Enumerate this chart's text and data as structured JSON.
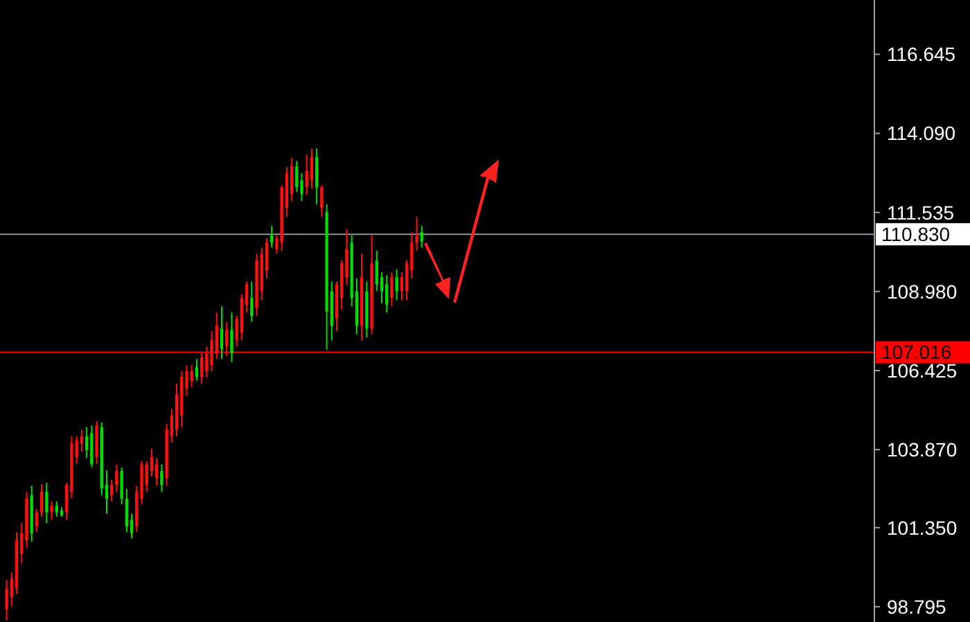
{
  "chart_data": {
    "type": "candlestick",
    "categories": [
      null,
      null,
      null,
      null,
      null,
      null,
      null,
      null,
      null,
      null,
      null,
      null,
      null,
      null,
      null,
      null,
      null,
      null,
      null,
      null,
      null,
      null,
      null,
      null,
      null,
      null,
      null,
      null,
      null,
      null,
      null,
      null,
      null,
      null,
      null,
      null,
      null,
      null,
      null,
      null,
      null,
      null,
      null,
      null,
      null,
      null,
      null,
      null,
      null,
      null,
      null,
      null,
      null,
      null,
      null,
      null,
      null,
      null,
      null,
      null,
      null,
      null,
      null,
      null,
      null,
      null,
      null,
      null,
      null,
      null,
      null,
      null,
      null,
      null,
      null,
      null,
      null,
      null,
      null,
      null,
      null,
      null,
      null,
      null,
      null,
      null,
      null,
      null,
      null,
      null,
      null,
      null,
      null,
      null,
      null,
      null,
      null,
      null,
      null,
      null,
      null,
      null,
      null,
      null,
      null,
      null,
      null,
      null,
      null,
      null,
      null,
      null,
      null,
      null,
      null,
      null,
      null,
      null,
      null,
      null,
      null,
      null,
      null,
      null,
      null,
      null,
      null,
      null,
      null,
      null,
      null,
      null,
      null,
      null,
      null,
      null,
      null,
      null,
      null,
      null,
      null,
      null,
      null,
      null,
      null,
      null,
      null,
      null,
      null,
      null,
      null,
      null,
      null,
      null,
      null,
      null,
      null,
      null,
      null,
      null,
      null,
      null,
      null,
      null,
      null,
      null,
      null,
      null,
      null,
      null,
      null,
      null,
      null,
      null
    ],
    "ohlc": [
      [
        98.7,
        99.65,
        98.35,
        99.37
      ],
      [
        99.1,
        99.9,
        98.8,
        99.7
      ],
      [
        99.4,
        101.2,
        99.2,
        100.94
      ],
      [
        100.5,
        101.5,
        100.2,
        101.17
      ],
      [
        100.94,
        102.5,
        100.7,
        102.28
      ],
      [
        102.4,
        102.7,
        100.9,
        101.17
      ],
      [
        101.39,
        101.95,
        101.2,
        101.84
      ],
      [
        101.84,
        102.75,
        101.7,
        102.51
      ],
      [
        102.51,
        102.8,
        101.5,
        101.84
      ],
      [
        101.84,
        102.2,
        101.6,
        102.06
      ],
      [
        102.06,
        102.2,
        101.7,
        101.84
      ],
      [
        101.9,
        102.0,
        101.7,
        101.75
      ],
      [
        101.84,
        102.8,
        101.6,
        102.73
      ],
      [
        102.5,
        104.3,
        102.3,
        104.07
      ],
      [
        103.63,
        104.3,
        103.4,
        104.16
      ],
      [
        104.07,
        104.5,
        103.8,
        104.3
      ],
      [
        104.3,
        104.6,
        103.6,
        103.85
      ],
      [
        104.4,
        104.65,
        103.3,
        103.4
      ],
      [
        103.63,
        104.8,
        103.4,
        104.65
      ],
      [
        104.6,
        104.75,
        102.4,
        102.62
      ],
      [
        102.73,
        103.2,
        101.8,
        102.28
      ],
      [
        102.4,
        102.9,
        102.2,
        102.73
      ],
      [
        102.73,
        103.4,
        102.5,
        103.18
      ],
      [
        103.18,
        103.3,
        102.1,
        102.28
      ],
      [
        102.28,
        102.6,
        101.2,
        101.39
      ],
      [
        101.6,
        101.8,
        101.0,
        101.17
      ],
      [
        101.39,
        102.7,
        101.2,
        102.51
      ],
      [
        102.28,
        103.5,
        102.1,
        103.4
      ],
      [
        102.73,
        103.5,
        102.5,
        103.4
      ],
      [
        103.18,
        103.9,
        103.0,
        103.63
      ],
      [
        102.95,
        103.6,
        102.7,
        103.4
      ],
      [
        103.18,
        103.4,
        102.5,
        102.73
      ],
      [
        102.95,
        104.7,
        102.7,
        104.52
      ],
      [
        104.3,
        105.2,
        104.1,
        104.97
      ],
      [
        104.52,
        106.0,
        104.3,
        105.64
      ],
      [
        104.97,
        106.4,
        104.6,
        106.22
      ],
      [
        105.86,
        106.6,
        105.6,
        106.4
      ],
      [
        106.1,
        106.6,
        105.9,
        106.4
      ],
      [
        106.53,
        106.8,
        106.1,
        106.22
      ],
      [
        106.22,
        107.0,
        106.0,
        106.85
      ],
      [
        106.4,
        107.2,
        106.2,
        106.98
      ],
      [
        106.6,
        107.7,
        106.4,
        107.42
      ],
      [
        106.98,
        108.3,
        106.8,
        107.87
      ],
      [
        107.78,
        108.5,
        106.8,
        107.12
      ],
      [
        107.2,
        108.0,
        106.9,
        107.74
      ],
      [
        107.74,
        108.3,
        106.7,
        106.98
      ],
      [
        107.42,
        108.2,
        107.2,
        108.1
      ],
      [
        107.65,
        108.9,
        107.4,
        108.77
      ],
      [
        108.55,
        109.3,
        108.3,
        109.21
      ],
      [
        108.77,
        109.3,
        108.0,
        108.19
      ],
      [
        108.45,
        110.2,
        108.2,
        109.98
      ],
      [
        108.99,
        110.4,
        108.7,
        110.2
      ],
      [
        109.66,
        110.7,
        109.4,
        110.56
      ],
      [
        110.8,
        111.1,
        110.4,
        110.56
      ],
      [
        110.34,
        110.8,
        110.2,
        110.69
      ],
      [
        110.56,
        112.4,
        110.3,
        112.35
      ],
      [
        111.68,
        113.0,
        111.4,
        112.8
      ],
      [
        112.13,
        113.3,
        111.9,
        113.02
      ],
      [
        113.02,
        113.2,
        112.2,
        112.35
      ],
      [
        112.57,
        112.8,
        111.9,
        112.13
      ],
      [
        112.35,
        113.4,
        112.1,
        112.88
      ],
      [
        112.57,
        113.6,
        112.3,
        113.33
      ],
      [
        113.33,
        113.6,
        111.8,
        112.35
      ],
      [
        111.68,
        112.4,
        111.4,
        112.35
      ],
      [
        111.55,
        111.8,
        107.1,
        108.33
      ],
      [
        108.99,
        109.3,
        107.4,
        107.87
      ],
      [
        108.1,
        109.3,
        107.7,
        109.21
      ],
      [
        108.77,
        110.0,
        108.4,
        109.89
      ],
      [
        109.44,
        111.0,
        109.2,
        110.34
      ],
      [
        110.56,
        110.8,
        108.5,
        108.77
      ],
      [
        108.99,
        109.4,
        107.6,
        107.87
      ],
      [
        107.87,
        110.2,
        107.4,
        109.44
      ],
      [
        108.99,
        109.3,
        107.5,
        107.78
      ],
      [
        107.78,
        110.8,
        107.6,
        109.89
      ],
      [
        109.98,
        110.3,
        109.0,
        109.21
      ],
      [
        109.44,
        109.6,
        108.6,
        108.99
      ],
      [
        109.21,
        109.5,
        108.3,
        108.55
      ],
      [
        108.77,
        109.6,
        108.5,
        109.44
      ],
      [
        109.44,
        109.7,
        108.7,
        108.99
      ],
      [
        108.99,
        109.6,
        108.7,
        109.44
      ],
      [
        108.99,
        110.0,
        108.7,
        109.89
      ],
      [
        109.66,
        110.9,
        109.4,
        110.56
      ],
      [
        110.56,
        111.4,
        110.3,
        110.78
      ],
      [
        110.9,
        111.1,
        110.4,
        110.6
      ],
      null,
      null,
      null,
      null,
      null,
      null,
      null,
      null,
      null,
      null,
      null,
      null,
      null,
      null,
      null,
      null,
      null,
      null,
      null,
      null,
      null,
      null,
      null,
      null,
      null,
      null,
      null,
      null,
      null,
      null,
      null,
      null,
      null,
      null,
      null,
      null,
      null,
      null,
      null,
      null,
      null,
      null,
      null,
      null,
      null,
      null,
      null,
      null,
      null,
      null,
      null,
      null,
      null,
      null,
      null,
      null,
      null,
      null,
      null,
      null,
      null,
      null,
      null,
      null,
      null,
      null,
      null,
      null,
      null,
      null,
      null,
      null,
      null,
      null,
      null,
      null,
      null,
      null,
      null,
      null,
      null,
      null,
      null,
      null,
      null,
      null,
      null,
      null,
      null,
      null
    ],
    "colors": [
      "#ff1010",
      "#ff1010",
      "#ff1010",
      "#ff1010",
      "#ff1010",
      "#00dd00",
      "#ff1010",
      "#ff1010",
      "#00dd00",
      "#ff1010",
      "#00dd00",
      "#00dd00",
      "#ff1010",
      "#ff1010",
      "#ff1010",
      "#ff1010",
      "#00dd00",
      "#00dd00",
      "#ff1010",
      "#00dd00",
      "#00dd00",
      "#ff1010",
      "#ff1010",
      "#00dd00",
      "#00dd00",
      "#00dd00",
      "#ff1010",
      "#ff1010",
      "#ff1010",
      "#ff1010",
      "#ff1010",
      "#00dd00",
      "#ff1010",
      "#ff1010",
      "#ff1010",
      "#ff1010",
      "#ff1010",
      "#ff1010",
      "#00dd00",
      "#ff1010",
      "#ff1010",
      "#ff1010",
      "#ff1010",
      "#00dd00",
      "#ff1010",
      "#00dd00",
      "#ff1010",
      "#ff1010",
      "#ff1010",
      "#00dd00",
      "#ff1010",
      "#ff1010",
      "#ff1010",
      "#00dd00",
      "#ff1010",
      "#ff1010",
      "#ff1010",
      "#ff1010",
      "#00dd00",
      "#00dd00",
      "#ff1010",
      "#ff1010",
      "#00dd00",
      "#ff1010",
      "#00dd00",
      "#00dd00",
      "#ff1010",
      "#ff1010",
      "#ff1010",
      "#00dd00",
      "#00dd00",
      "#ff1010",
      "#00dd00",
      "#ff1010",
      "#00dd00",
      "#00dd00",
      "#00dd00",
      "#ff1010",
      "#00dd00",
      "#ff1010",
      "#ff1010",
      "#ff1010",
      "#ff1010",
      "#00dd00",
      null,
      null,
      null,
      null,
      null,
      null,
      null,
      null,
      null,
      null,
      null,
      null,
      null,
      null,
      null,
      null,
      null,
      null,
      null,
      null,
      null,
      null,
      null,
      null,
      null,
      null,
      null,
      null,
      null,
      null,
      null,
      null,
      null,
      null,
      null,
      null,
      null,
      null,
      null,
      null,
      null,
      null,
      null,
      null,
      null,
      null,
      null,
      null,
      null,
      null,
      null,
      null,
      null,
      null,
      null,
      null,
      null,
      null,
      null,
      null,
      null,
      null,
      null,
      null,
      null,
      null,
      null,
      null,
      null,
      null,
      null,
      null,
      null,
      null,
      null,
      null,
      null,
      null,
      null,
      null,
      null,
      null,
      null,
      null,
      null,
      null,
      null,
      null,
      null,
      null
    ],
    "ylim": [
      98.3,
      118.4
    ],
    "yticks": [
      98.795,
      {
        "value": 101.35,
        "label": "101.350"
      },
      {
        "value": 103.87,
        "label": "103.870"
      },
      106.425,
      {
        "value": 108.98,
        "label": "108.980"
      },
      111.535,
      {
        "value": 114.09,
        "label": "114.090"
      },
      116.645
    ],
    "ref_lines": [
      {
        "axis": "y",
        "value": 110.83,
        "label": "110.830",
        "color": "#8a969e"
      },
      {
        "axis": "y",
        "value": 107.016,
        "label": "107.016",
        "color": "#ff0000"
      }
    ]
  }
}
